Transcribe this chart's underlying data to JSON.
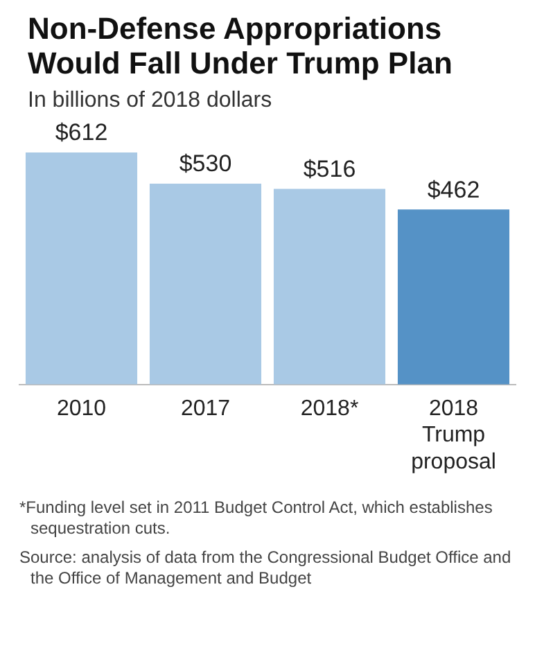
{
  "chart_data": {
    "type": "bar",
    "title": "Non-Defense Appropriations Would Fall Under Trump Plan",
    "subtitle": "In billions of 2018 dollars",
    "categories": [
      "2010",
      "2017",
      "2018*",
      "2018 Trump proposal"
    ],
    "values": [
      612,
      530,
      516,
      462
    ],
    "colors": [
      "#a9c9e5",
      "#a9c9e5",
      "#a9c9e5",
      "#5592c6"
    ],
    "value_labels": [
      "$612",
      "$530",
      "$516",
      "$462"
    ],
    "annotations": [
      "*Funding level set in 2011 Budget Control Act, which establishes sequestration cuts.",
      "Source: analysis of data from the Congressional Budget Office and the Office of Management and Budget"
    ],
    "grid": false,
    "legend": false
  }
}
